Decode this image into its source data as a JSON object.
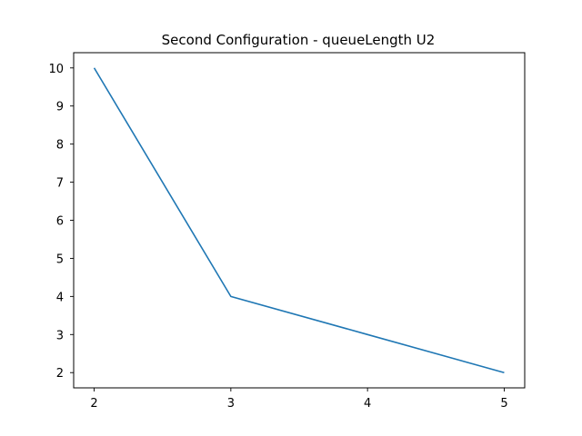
{
  "chart_data": {
    "type": "line",
    "title": "Second Configuration - queueLength U2",
    "xlabel": "",
    "ylabel": "",
    "x": [
      2,
      3,
      4,
      5
    ],
    "series": [
      {
        "values": [
          10,
          4,
          3,
          2
        ],
        "color": "#1f77b4"
      }
    ],
    "xlim": [
      1.85,
      5.15
    ],
    "ylim": [
      1.6,
      10.4
    ],
    "xticks": [
      2,
      3,
      4,
      5
    ],
    "yticks": [
      2,
      3,
      4,
      5,
      6,
      7,
      8,
      9,
      10
    ],
    "grid": false,
    "legend": "none"
  }
}
